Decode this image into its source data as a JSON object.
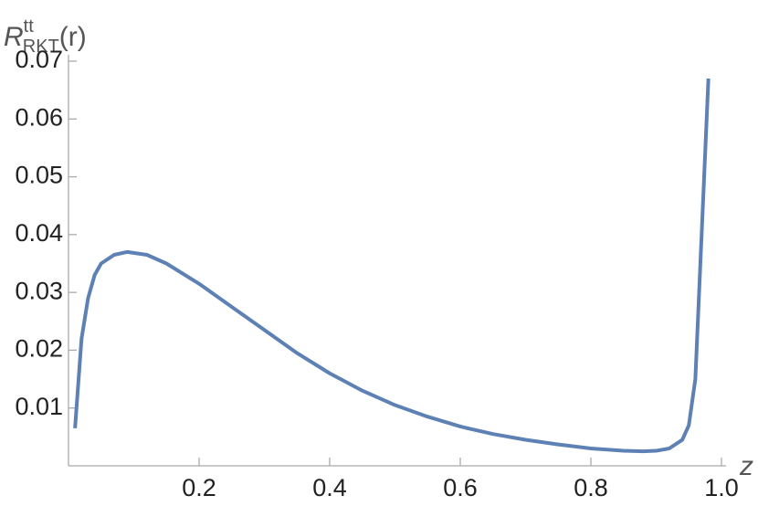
{
  "chart_data": {
    "type": "line",
    "y_label": {
      "base": "R",
      "sup": "tt",
      "sub": "RKT",
      "arg": "(r)"
    },
    "x_label": "z",
    "x": [
      0.01,
      0.02,
      0.03,
      0.04,
      0.05,
      0.07,
      0.09,
      0.12,
      0.15,
      0.2,
      0.25,
      0.3,
      0.35,
      0.4,
      0.45,
      0.5,
      0.55,
      0.6,
      0.65,
      0.7,
      0.75,
      0.8,
      0.85,
      0.88,
      0.9,
      0.92,
      0.94,
      0.95,
      0.96,
      0.98
    ],
    "series": [
      {
        "color": "#5e81b5",
        "values": [
          0.0065,
          0.022,
          0.029,
          0.033,
          0.035,
          0.0365,
          0.037,
          0.0365,
          0.035,
          0.0315,
          0.0275,
          0.0235,
          0.0195,
          0.016,
          0.013,
          0.0105,
          0.0085,
          0.0068,
          0.0055,
          0.0045,
          0.0037,
          0.003,
          0.0026,
          0.0025,
          0.0026,
          0.003,
          0.0045,
          0.007,
          0.015,
          0.067
        ]
      }
    ],
    "xlim": [
      0,
      1
    ],
    "ylim": [
      0,
      0.07
    ],
    "xticks": [
      0.2,
      0.4,
      0.6,
      0.8,
      {
        "value": 1,
        "label": "1.0"
      }
    ],
    "yticks": [
      0.01,
      0.02,
      0.03,
      0.04,
      0.05,
      0.06,
      0.07
    ]
  }
}
